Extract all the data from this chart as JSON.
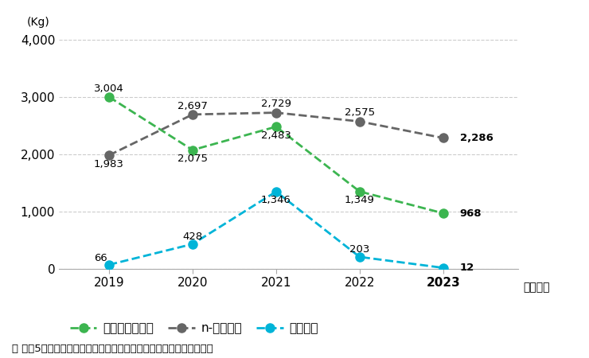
{
  "years": [
    2019,
    2020,
    2021,
    2022,
    2023
  ],
  "dichloromethane": [
    3004,
    2075,
    2483,
    1349,
    968
  ],
  "n_hexane": [
    1983,
    2697,
    2729,
    2575,
    2286
  ],
  "toluene": [
    66,
    428,
    1346,
    203,
    12
  ],
  "dichloromethane_color": "#3cb550",
  "n_hexane_color": "#666666",
  "toluene_color": "#00b4d8",
  "ylim": [
    0,
    4200
  ],
  "yticks": [
    0,
    1000,
    2000,
    3000,
    4000
  ],
  "ylabel": "(Kg)",
  "xlabel": "（年度）",
  "legend_labels": [
    "ジクロロメタン",
    "n-ヘキサン",
    "トルエン"
  ],
  "dc_texts": [
    "3,004",
    "2,075",
    "2,483",
    "1,349",
    "968"
  ],
  "nx_texts": [
    "1,983",
    "2,697",
    "2,729",
    "2,575",
    "2,286"
  ],
  "tl_texts": [
    "66",
    "428",
    "1,346",
    "203",
    "12"
  ],
  "footnote": "＊ 過去5年以内に全社取扱量の年間合計が１トンを超えた物質を記載"
}
